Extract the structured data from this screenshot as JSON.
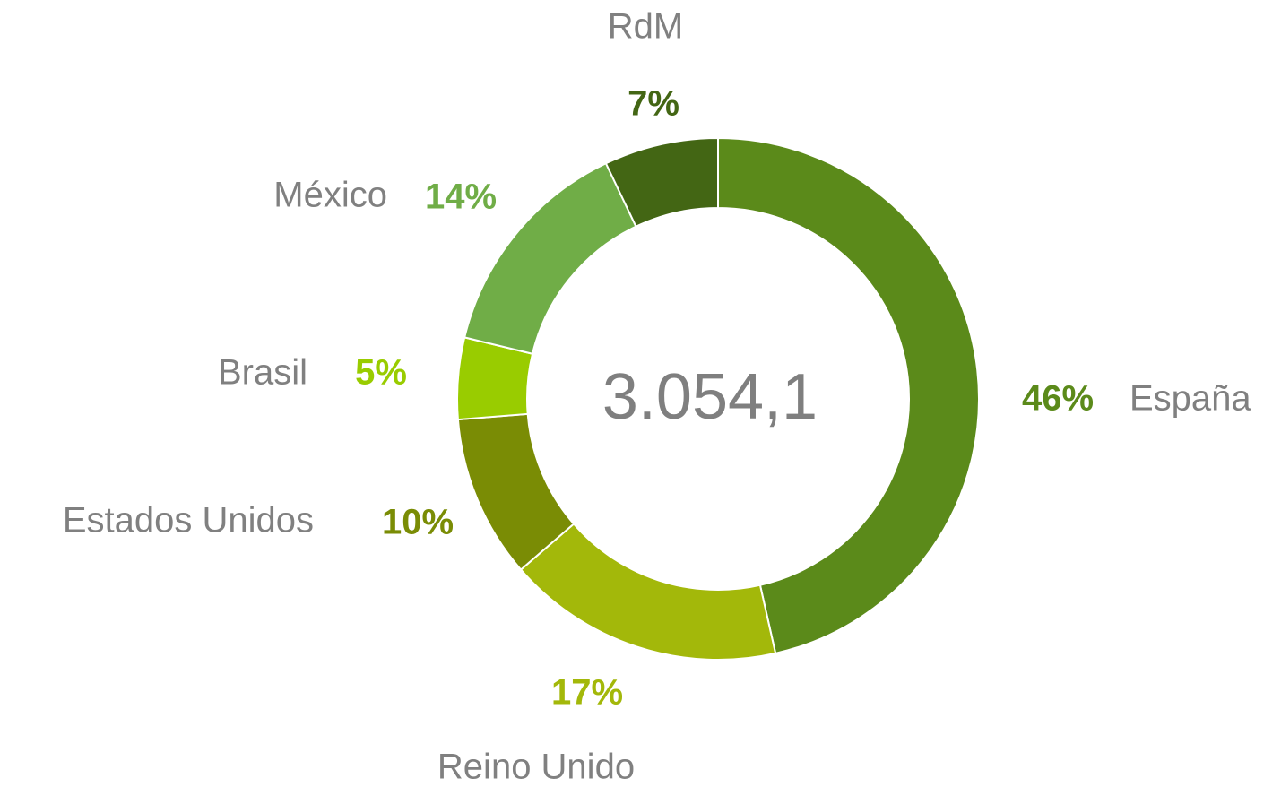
{
  "chart_data": {
    "type": "donut",
    "categories": [
      "España",
      "Reino Unido",
      "Estados Unidos",
      "Brasil",
      "México",
      "RdM"
    ],
    "values": [
      46,
      17,
      10,
      5,
      14,
      7
    ],
    "value_labels": [
      "46%",
      "17%",
      "10%",
      "5%",
      "14%",
      "7%"
    ],
    "colors": [
      "#5b8a1a",
      "#a3b80a",
      "#7a8c05",
      "#99cc00",
      "#70ad47",
      "#436614"
    ],
    "center_text": "3.054,1"
  }
}
